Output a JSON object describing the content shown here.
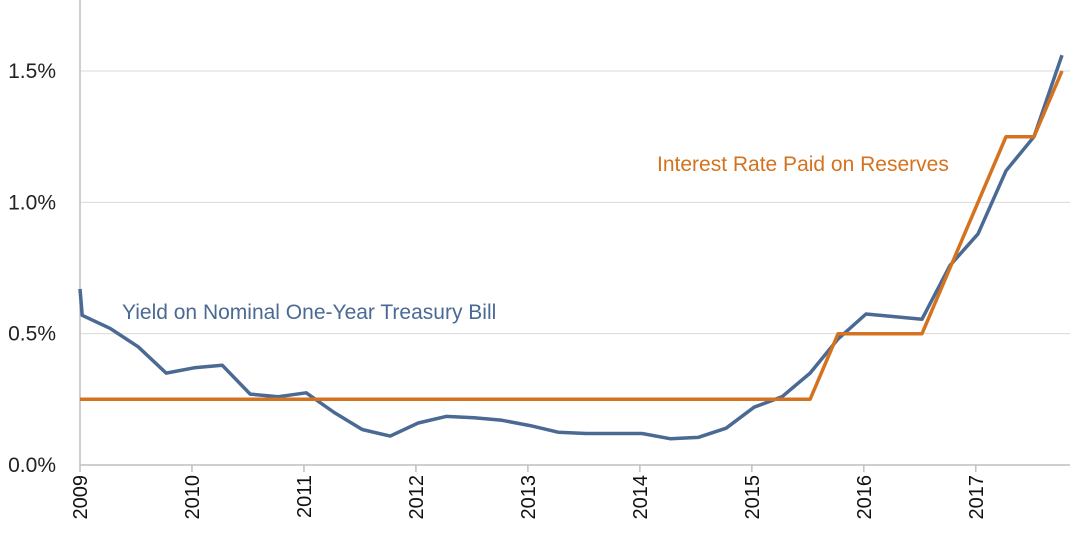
{
  "chart_data": {
    "type": "line",
    "title": "",
    "xlabel": "",
    "ylabel": "",
    "xlim": [
      2009.0,
      2017.85
    ],
    "ylim": [
      0,
      1.6
    ],
    "y_ticks": [
      0.0,
      0.5,
      1.0,
      1.5
    ],
    "y_tick_labels": [
      "0.0%",
      "0.5%",
      "1.0%",
      "1.5%"
    ],
    "x_ticks": [
      2009,
      2010,
      2011,
      2012,
      2013,
      2014,
      2015,
      2016,
      2017
    ],
    "x_tick_labels": [
      "2009",
      "2010",
      "2011",
      "2012",
      "2013",
      "2014",
      "2015",
      "2016",
      "2017"
    ],
    "grid": "horizontal",
    "legend": "none",
    "series": [
      {
        "name": "Yield on Nominal One-Year Treasury Bill",
        "color": "#4a6a94",
        "points": [
          [
            2009.0,
            0.67
          ],
          [
            2009.02,
            0.57
          ],
          [
            2009.27,
            0.52
          ],
          [
            2009.52,
            0.45
          ],
          [
            2009.77,
            0.35
          ],
          [
            2010.02,
            0.37
          ],
          [
            2010.27,
            0.38
          ],
          [
            2010.52,
            0.27
          ],
          [
            2010.77,
            0.26
          ],
          [
            2011.02,
            0.275
          ],
          [
            2011.27,
            0.2
          ],
          [
            2011.52,
            0.135
          ],
          [
            2011.77,
            0.11
          ],
          [
            2012.02,
            0.16
          ],
          [
            2012.27,
            0.185
          ],
          [
            2012.52,
            0.18
          ],
          [
            2012.77,
            0.17
          ],
          [
            2013.02,
            0.15
          ],
          [
            2013.27,
            0.125
          ],
          [
            2013.52,
            0.12
          ],
          [
            2013.77,
            0.12
          ],
          [
            2014.02,
            0.12
          ],
          [
            2014.27,
            0.1
          ],
          [
            2014.52,
            0.105
          ],
          [
            2014.77,
            0.14
          ],
          [
            2015.02,
            0.22
          ],
          [
            2015.27,
            0.26
          ],
          [
            2015.52,
            0.35
          ],
          [
            2015.77,
            0.48
          ],
          [
            2016.02,
            0.575
          ],
          [
            2016.27,
            0.565
          ],
          [
            2016.52,
            0.555
          ],
          [
            2016.77,
            0.76
          ],
          [
            2017.02,
            0.88
          ],
          [
            2017.27,
            1.12
          ],
          [
            2017.52,
            1.25
          ],
          [
            2017.77,
            1.56
          ]
        ]
      },
      {
        "name": "Interest Rate Paid on Reserves",
        "color": "#d4721f",
        "points": [
          [
            2009.0,
            0.25
          ],
          [
            2015.52,
            0.25
          ],
          [
            2015.77,
            0.5
          ],
          [
            2016.52,
            0.5
          ],
          [
            2016.77,
            0.75
          ],
          [
            2017.27,
            1.25
          ],
          [
            2017.52,
            1.25
          ],
          [
            2017.77,
            1.5
          ]
        ]
      }
    ]
  }
}
